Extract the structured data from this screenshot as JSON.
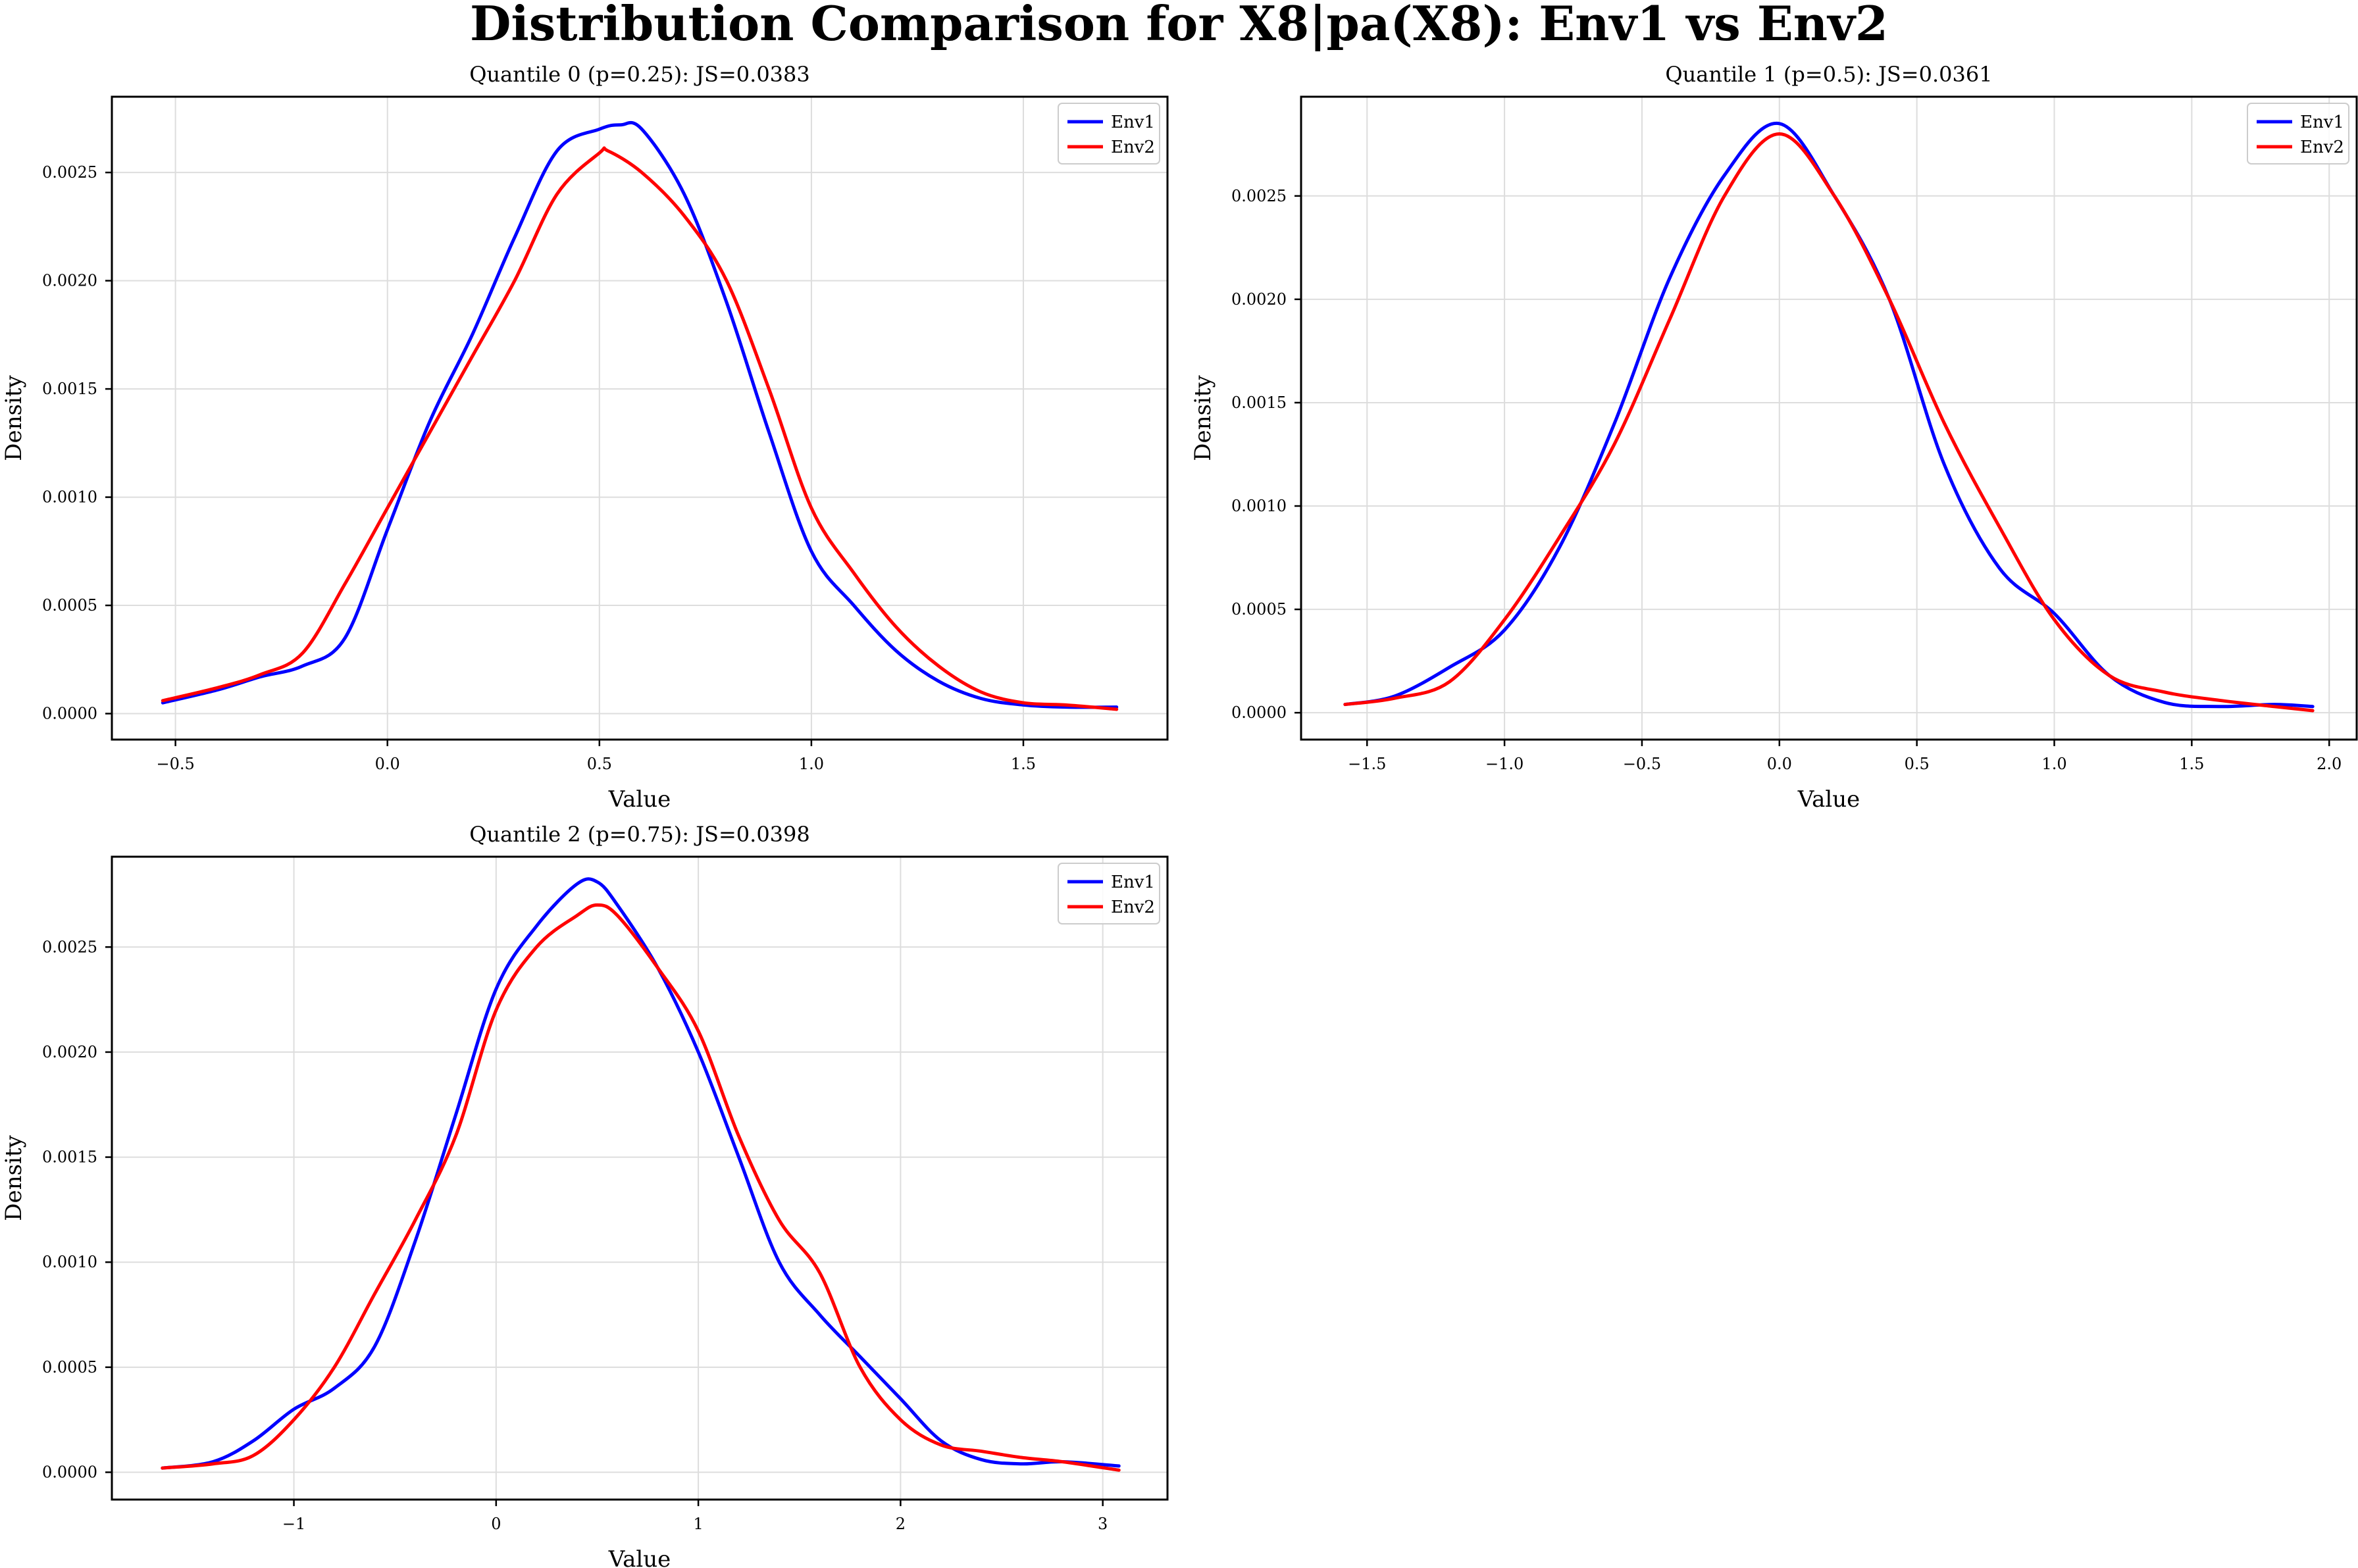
{
  "figure": {
    "title": "Distribution Comparison for X8|pa(X8): Env1 vs Env2",
    "colors": {
      "Env1": "#0000ff",
      "Env2": "#ff0000",
      "grid": "#dddddd"
    }
  },
  "chart_data": [
    {
      "type": "line",
      "title": "Quantile 0 (p=0.25): JS=0.0383",
      "xlabel": "Value",
      "ylabel": "Density",
      "xlim": [
        -0.65,
        1.84
      ],
      "ylim": [
        -0.00012,
        0.00285
      ],
      "xticks": [
        -0.5,
        0.0,
        0.5,
        1.0,
        1.5
      ],
      "xtick_labels": [
        "−0.5",
        "0.0",
        "0.5",
        "1.0",
        "1.5"
      ],
      "yticks": [
        0.0,
        0.0005,
        0.001,
        0.0015,
        0.002,
        0.0025
      ],
      "ytick_labels": [
        "0.0000",
        "0.0005",
        "0.0010",
        "0.0015",
        "0.0020",
        "0.0025"
      ],
      "grid": true,
      "legend_position": "top-right",
      "series": [
        {
          "name": "Env1",
          "x": [
            -0.53,
            -0.4,
            -0.3,
            -0.2,
            -0.1,
            0.0,
            0.1,
            0.2,
            0.3,
            0.4,
            0.5,
            0.55,
            0.6,
            0.7,
            0.8,
            0.9,
            1.0,
            1.1,
            1.2,
            1.3,
            1.4,
            1.5,
            1.6,
            1.72
          ],
          "y": [
            5e-05,
            0.00011,
            0.00017,
            0.00022,
            0.00035,
            0.00085,
            0.00135,
            0.00175,
            0.0022,
            0.0026,
            0.0027,
            0.00272,
            0.0027,
            0.0024,
            0.0019,
            0.0013,
            0.00075,
            0.0005,
            0.00029,
            0.00015,
            7e-05,
            4e-05,
            3e-05,
            3e-05
          ]
        },
        {
          "name": "Env2",
          "x": [
            -0.53,
            -0.4,
            -0.3,
            -0.2,
            -0.1,
            0.0,
            0.1,
            0.2,
            0.3,
            0.4,
            0.5,
            0.52,
            0.6,
            0.7,
            0.8,
            0.9,
            1.0,
            1.1,
            1.2,
            1.3,
            1.4,
            1.5,
            1.6,
            1.72
          ],
          "y": [
            6e-05,
            0.00012,
            0.00018,
            0.00028,
            0.0006,
            0.00095,
            0.0013,
            0.00165,
            0.002,
            0.0024,
            0.00259,
            0.0026,
            0.0025,
            0.0023,
            0.002,
            0.0015,
            0.00095,
            0.00065,
            0.0004,
            0.00022,
            0.0001,
            5e-05,
            4e-05,
            2e-05
          ]
        }
      ]
    },
    {
      "type": "line",
      "title": "Quantile 1 (p=0.5): JS=0.0361",
      "xlabel": "Value",
      "ylabel": "Density",
      "xlim": [
        -1.74,
        2.1
      ],
      "ylim": [
        -0.00013,
        0.00298
      ],
      "xticks": [
        -1.5,
        -1.0,
        -0.5,
        0.0,
        0.5,
        1.0,
        1.5,
        2.0
      ],
      "xtick_labels": [
        "−1.5",
        "−1.0",
        "−0.5",
        "0.0",
        "0.5",
        "1.0",
        "1.5",
        "2.0"
      ],
      "yticks": [
        0.0,
        0.0005,
        0.001,
        0.0015,
        0.002,
        0.0025
      ],
      "ytick_labels": [
        "0.0000",
        "0.0005",
        "0.0010",
        "0.0015",
        "0.0020",
        "0.0025"
      ],
      "grid": true,
      "legend_position": "top-right",
      "series": [
        {
          "name": "Env1",
          "x": [
            -1.58,
            -1.4,
            -1.2,
            -1.0,
            -0.8,
            -0.6,
            -0.4,
            -0.2,
            0.0,
            0.2,
            0.4,
            0.6,
            0.8,
            1.0,
            1.2,
            1.4,
            1.6,
            1.8,
            1.94
          ],
          "y": [
            4e-05,
            8e-05,
            0.00022,
            0.0004,
            0.0008,
            0.0014,
            0.0021,
            0.0026,
            0.00285,
            0.0025,
            0.002,
            0.0012,
            0.0007,
            0.00048,
            0.00018,
            5e-05,
            3e-05,
            4e-05,
            3e-05
          ]
        },
        {
          "name": "Env2",
          "x": [
            -1.58,
            -1.4,
            -1.2,
            -1.0,
            -0.8,
            -0.6,
            -0.4,
            -0.2,
            0.0,
            0.2,
            0.4,
            0.6,
            0.8,
            1.0,
            1.2,
            1.4,
            1.6,
            1.8,
            1.94
          ],
          "y": [
            4e-05,
            7e-05,
            0.00015,
            0.00045,
            0.00085,
            0.0013,
            0.0019,
            0.0025,
            0.0028,
            0.0025,
            0.002,
            0.0014,
            0.0009,
            0.00045,
            0.00018,
            0.0001,
            6e-05,
            3e-05,
            1e-05
          ]
        }
      ]
    },
    {
      "type": "line",
      "title": "Quantile 2 (p=0.75): JS=0.0398",
      "xlabel": "Value",
      "ylabel": "Density",
      "xlim": [
        -1.9,
        3.32
      ],
      "ylim": [
        -0.00013,
        0.00293
      ],
      "xticks": [
        -1,
        0,
        1,
        2,
        3
      ],
      "xtick_labels": [
        "−1",
        "0",
        "1",
        "2",
        "3"
      ],
      "yticks": [
        0.0,
        0.0005,
        0.001,
        0.0015,
        0.002,
        0.0025
      ],
      "ytick_labels": [
        "0.0000",
        "0.0005",
        "0.0010",
        "0.0015",
        "0.0020",
        "0.0025"
      ],
      "grid": true,
      "legend_position": "top-right",
      "series": [
        {
          "name": "Env1",
          "x": [
            -1.65,
            -1.4,
            -1.2,
            -1.0,
            -0.8,
            -0.6,
            -0.4,
            -0.2,
            0.0,
            0.2,
            0.4,
            0.5,
            0.6,
            0.8,
            1.0,
            1.2,
            1.4,
            1.6,
            1.8,
            2.0,
            2.2,
            2.4,
            2.6,
            2.8,
            3.08
          ],
          "y": [
            2e-05,
            5e-05,
            0.00015,
            0.0003,
            0.0004,
            0.0006,
            0.0011,
            0.0017,
            0.0023,
            0.0026,
            0.0028,
            0.00281,
            0.0027,
            0.0024,
            0.002,
            0.0015,
            0.001,
            0.00075,
            0.00055,
            0.00035,
            0.00015,
            6e-05,
            4e-05,
            5e-05,
            3e-05
          ]
        },
        {
          "name": "Env2",
          "x": [
            -1.65,
            -1.4,
            -1.2,
            -1.0,
            -0.8,
            -0.6,
            -0.4,
            -0.2,
            0.0,
            0.2,
            0.4,
            0.5,
            0.6,
            0.8,
            1.0,
            1.2,
            1.4,
            1.6,
            1.8,
            2.0,
            2.2,
            2.4,
            2.6,
            2.8,
            3.08
          ],
          "y": [
            2e-05,
            4e-05,
            8e-05,
            0.00025,
            0.0005,
            0.00085,
            0.0012,
            0.0016,
            0.0022,
            0.0025,
            0.00265,
            0.0027,
            0.00265,
            0.0024,
            0.0021,
            0.0016,
            0.0012,
            0.00095,
            0.0005,
            0.00025,
            0.00013,
            0.0001,
            7e-05,
            5e-05,
            1e-05
          ]
        }
      ]
    }
  ]
}
